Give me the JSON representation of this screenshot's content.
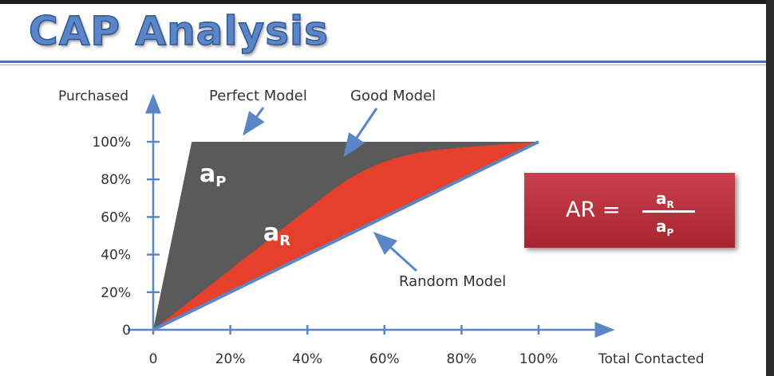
{
  "slide": {
    "title": "CAP Analysis"
  },
  "formula": {
    "lhs": "AR =",
    "numerator": "a",
    "numerator_sub": "R",
    "denominator": "a",
    "denominator_sub": "P",
    "box_color": "#b8323d"
  },
  "chart_data": {
    "type": "area",
    "xlabel": "Total Contacted",
    "ylabel": "Purchased",
    "x_ticks": [
      "0",
      "20%",
      "40%",
      "60%",
      "80%",
      "100%"
    ],
    "y_ticks": [
      "0",
      "20%",
      "40%",
      "60%",
      "80%",
      "100%"
    ],
    "xlim": [
      0,
      100
    ],
    "ylim": [
      0,
      100
    ],
    "grid": false,
    "series": [
      {
        "name": "Perfect Model",
        "color": "#5a5a5a",
        "x": [
          0,
          10,
          100
        ],
        "y": [
          0,
          100,
          100
        ]
      },
      {
        "name": "Good Model",
        "color": "#e5402c",
        "x": [
          0,
          10,
          20,
          30,
          40,
          50,
          60,
          70,
          80,
          90,
          100
        ],
        "y": [
          0,
          16,
          32,
          48,
          64,
          80,
          90,
          95,
          97,
          98.5,
          100
        ]
      },
      {
        "name": "Random Model",
        "color": "#5b86c6",
        "x": [
          0,
          100
        ],
        "y": [
          0,
          100
        ]
      }
    ],
    "area_labels": [
      {
        "text": "a",
        "sub": "P"
      },
      {
        "text": "a",
        "sub": "R"
      }
    ],
    "annotations": [
      "Perfect Model",
      "Good Model",
      "Random Model"
    ]
  }
}
